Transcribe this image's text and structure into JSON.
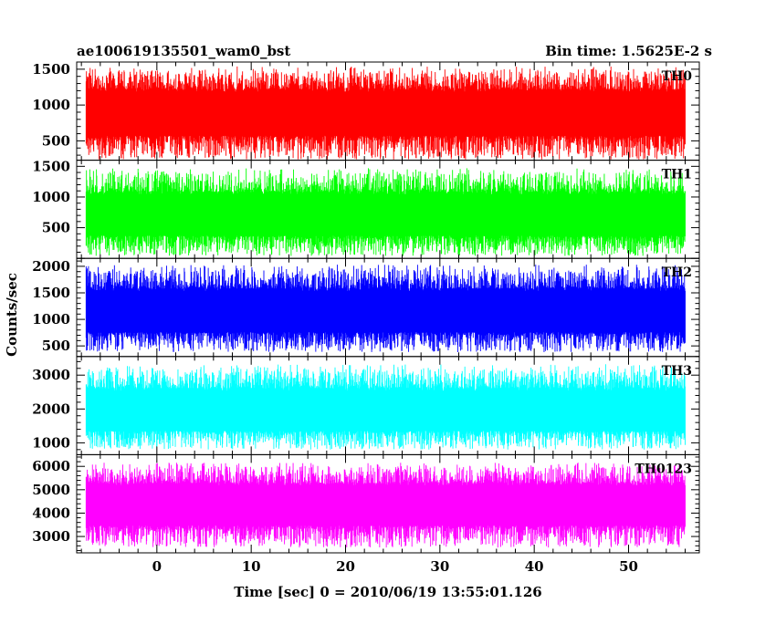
{
  "header": {
    "left_title": "ae100619135501_wam0_bst",
    "right_title": "Bin time: 1.5625E-2 s"
  },
  "chart_data": {
    "type": "line",
    "xlabel": "Time [sec] 0 = 2010/06/19 13:55:01.126",
    "ylabel": "Counts/sec",
    "xlim": [
      -8.5,
      57.5
    ],
    "x_ticks": [
      0,
      10,
      20,
      30,
      40,
      50
    ],
    "x_tick_labels": [
      "0",
      "10",
      "20",
      "30",
      "40",
      "50"
    ],
    "data_x_range": [
      -7.5,
      56
    ],
    "bin_time": 0.015625,
    "panels": [
      {
        "label": "TH0",
        "color": "#ff0000",
        "ylim": [
          230,
          1600
        ],
        "y_ticks": [
          500,
          1000,
          1500
        ],
        "y_tick_labels": [
          "500",
          "1000",
          "1500"
        ],
        "mean": 900,
        "high_envelope": 1480,
        "low_envelope": 300
      },
      {
        "label": "TH1",
        "color": "#00ff00",
        "ylim": [
          0,
          1600
        ],
        "y_ticks": [
          500,
          1000,
          1500
        ],
        "y_tick_labels": [
          "500",
          "1000",
          "1500"
        ],
        "mean": 700,
        "high_envelope": 1400,
        "low_envelope": 100
      },
      {
        "label": "TH2",
        "color": "#0000ff",
        "ylim": [
          300,
          2150
        ],
        "y_ticks": [
          500,
          1000,
          1500,
          2000
        ],
        "y_tick_labels": [
          "500",
          "1000",
          "1500",
          "2000"
        ],
        "mean": 1130,
        "high_envelope": 1950,
        "low_envelope": 450
      },
      {
        "label": "TH3",
        "color": "#00ffff",
        "ylim": [
          650,
          3550
        ],
        "y_ticks": [
          1000,
          2000,
          3000
        ],
        "y_tick_labels": [
          "1000",
          "2000",
          "3000"
        ],
        "mean": 1900,
        "high_envelope": 3200,
        "low_envelope": 900
      },
      {
        "label": "TH0123",
        "color": "#ff00ff",
        "ylim": [
          2300,
          6500
        ],
        "y_ticks": [
          3000,
          4000,
          5000,
          6000
        ],
        "y_tick_labels": [
          "3000",
          "4000",
          "5000",
          "6000"
        ],
        "mean": 4400,
        "high_envelope": 6000,
        "low_envelope": 2700
      }
    ]
  }
}
